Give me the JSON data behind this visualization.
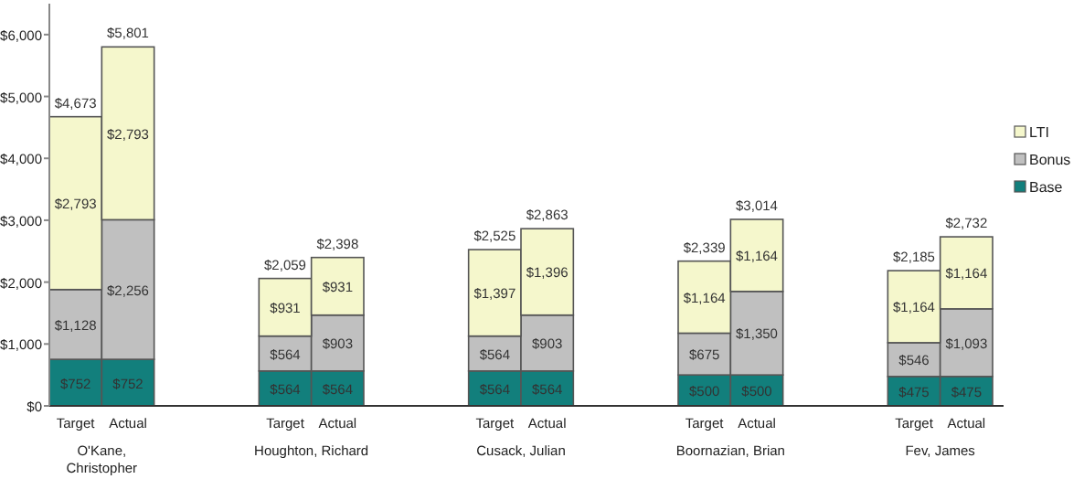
{
  "chart_data": {
    "type": "bar",
    "stacked": true,
    "categories": [
      "Target",
      "Actual",
      null,
      null,
      "Target",
      "Actual",
      null,
      null,
      "Target",
      "Actual",
      null,
      null,
      "Target",
      "Actual",
      null,
      null,
      "Target",
      "Actual"
    ],
    "series": [
      {
        "name": "Base",
        "color": "#127f7c",
        "values": [
          752,
          752,
          null,
          null,
          564,
          564,
          null,
          null,
          564,
          564,
          null,
          null,
          500,
          500,
          null,
          null,
          475,
          475
        ],
        "value_labels": [
          "$752",
          "$752",
          null,
          null,
          "$564",
          "$564",
          null,
          null,
          "$564",
          "$564",
          null,
          null,
          "$500",
          "$500",
          null,
          null,
          "$475",
          "$475"
        ]
      },
      {
        "name": "Bonus",
        "color": "#c0c0c0",
        "values": [
          1128,
          2256,
          null,
          null,
          564,
          903,
          null,
          null,
          564,
          903,
          null,
          null,
          675,
          1350,
          null,
          null,
          546,
          1093
        ],
        "value_labels": [
          "$1,128",
          "$2,256",
          null,
          null,
          "$564",
          "$903",
          null,
          null,
          "$564",
          "$903",
          null,
          null,
          "$675",
          "$1,350",
          null,
          null,
          "$546",
          "$1,093"
        ]
      },
      {
        "name": "LTI",
        "color": "#f5f7cc",
        "values": [
          2793,
          2793,
          null,
          null,
          931,
          931,
          null,
          null,
          1397,
          1396,
          null,
          null,
          1164,
          1164,
          null,
          null,
          1164,
          1164
        ],
        "value_labels": [
          "$2,793",
          "$2,793",
          null,
          null,
          "$931",
          "$931",
          null,
          null,
          "$1,397",
          "$1,396",
          null,
          null,
          "$1,164",
          "$1,164",
          null,
          null,
          "$1,164",
          "$1,164"
        ]
      }
    ],
    "totals": [
      "$4,673",
      "$5,801",
      null,
      null,
      "$2,059",
      "$2,398",
      null,
      null,
      "$2,525",
      "$2,863",
      null,
      null,
      "$2,339",
      "$3,014",
      null,
      null,
      "$2,185",
      "$2,732"
    ],
    "annotations": [
      "O'Kane, Christopher",
      "Houghton, Richard",
      "Cusack, Julian",
      "Boornazian, Brian",
      "Fev, James"
    ],
    "ylim": [
      0,
      6500
    ],
    "yticks": [
      {
        "value": 0,
        "label": "$0"
      },
      {
        "value": 1000,
        "label": "$1,000"
      },
      {
        "value": 2000,
        "label": "$2,000"
      },
      {
        "value": 3000,
        "label": "$3,000"
      },
      {
        "value": 4000,
        "label": "$4,000"
      },
      {
        "value": 5000,
        "label": "$5,000"
      },
      {
        "value": 6000,
        "label": "$6,000"
      }
    ],
    "grid": false,
    "legend": "right"
  }
}
